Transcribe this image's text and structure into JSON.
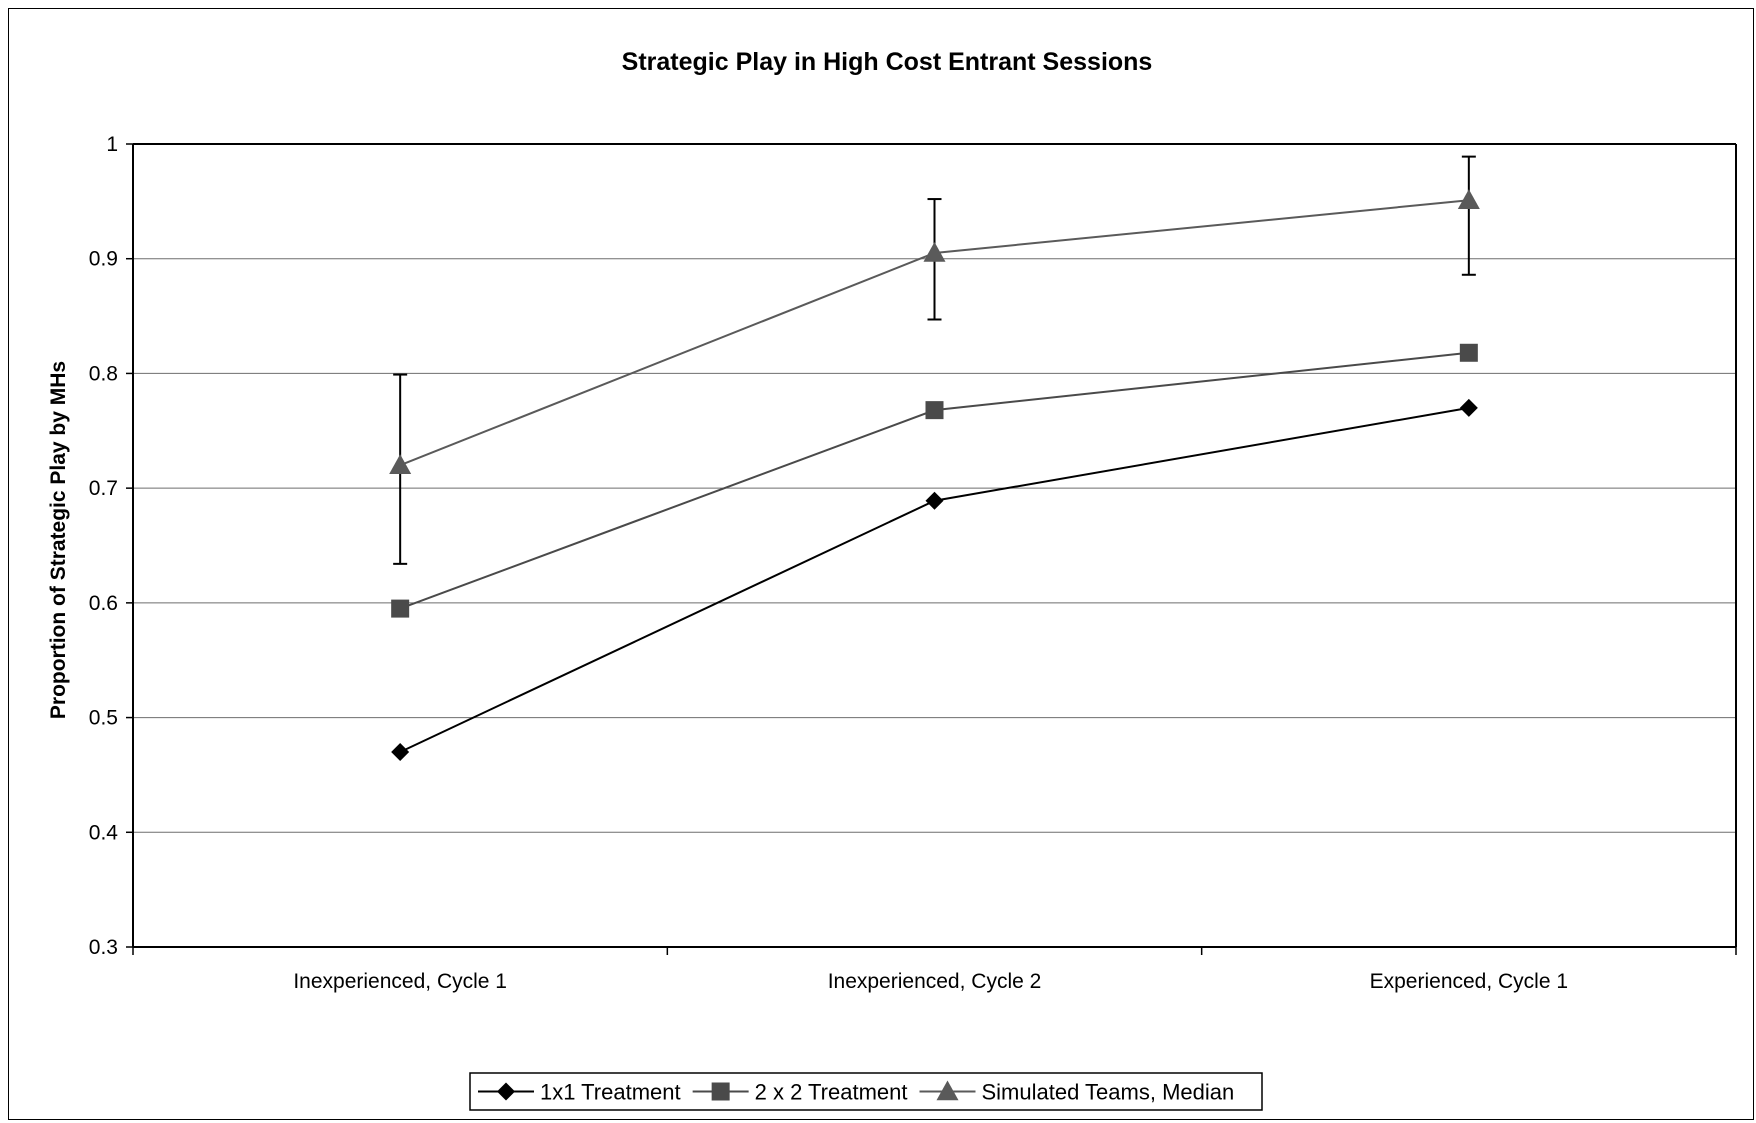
{
  "chart_data": {
    "type": "line",
    "title": "Strategic Play in High Cost Entrant Sessions",
    "xlabel": "",
    "ylabel": "Proportion of Strategic Play by MHs",
    "categories": [
      "Inexperienced, Cycle 1",
      "Inexperienced, Cycle 2",
      "Experienced, Cycle 1"
    ],
    "ylim": [
      0.3,
      1
    ],
    "yticks": [
      0.3,
      0.4,
      0.5,
      0.6,
      0.7,
      0.8,
      0.9,
      1
    ],
    "ytick_labels": [
      "0.3",
      "0.4",
      "0.5",
      "0.6",
      "0.7",
      "0.8",
      "0.9",
      "1"
    ],
    "grid": true,
    "legend_position": "bottom",
    "series": [
      {
        "name": "1x1 Treatment",
        "values": [
          0.47,
          0.689,
          0.77
        ],
        "color": "#000000",
        "marker": "diamond"
      },
      {
        "name": "2 x 2 Treatment",
        "values": [
          0.595,
          0.768,
          0.818
        ],
        "color": "#4a4a4a",
        "marker": "square"
      },
      {
        "name": "Simulated Teams, Median",
        "values": [
          0.72,
          0.905,
          0.951
        ],
        "color": "#5a5a5a",
        "marker": "triangle",
        "error_bars": [
          [
            0.634,
            0.799
          ],
          [
            0.847,
            0.952
          ],
          [
            0.886,
            0.989
          ]
        ]
      }
    ]
  }
}
